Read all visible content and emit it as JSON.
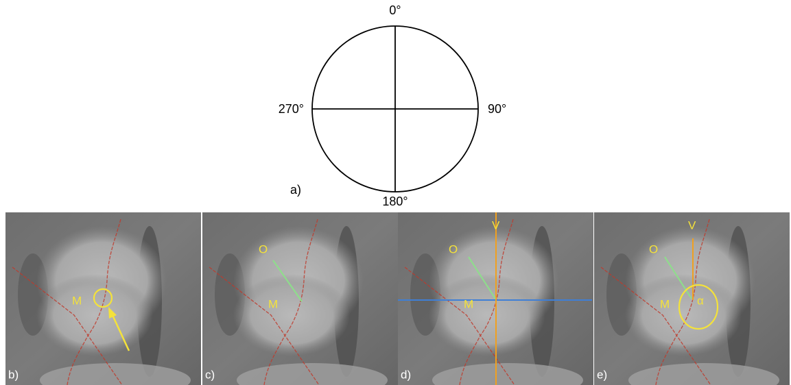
{
  "diagram": {
    "angles": [
      "0°",
      "90°",
      "180°",
      "270°"
    ],
    "label": "a)"
  },
  "panels": [
    {
      "label": "b)",
      "marks": [
        "M"
      ]
    },
    {
      "label": "c)",
      "marks": [
        "O",
        "M"
      ]
    },
    {
      "label": "d)",
      "marks": [
        "V",
        "O",
        "M"
      ]
    },
    {
      "label": "e)",
      "marks": [
        "V",
        "O",
        "M",
        "α"
      ]
    }
  ]
}
